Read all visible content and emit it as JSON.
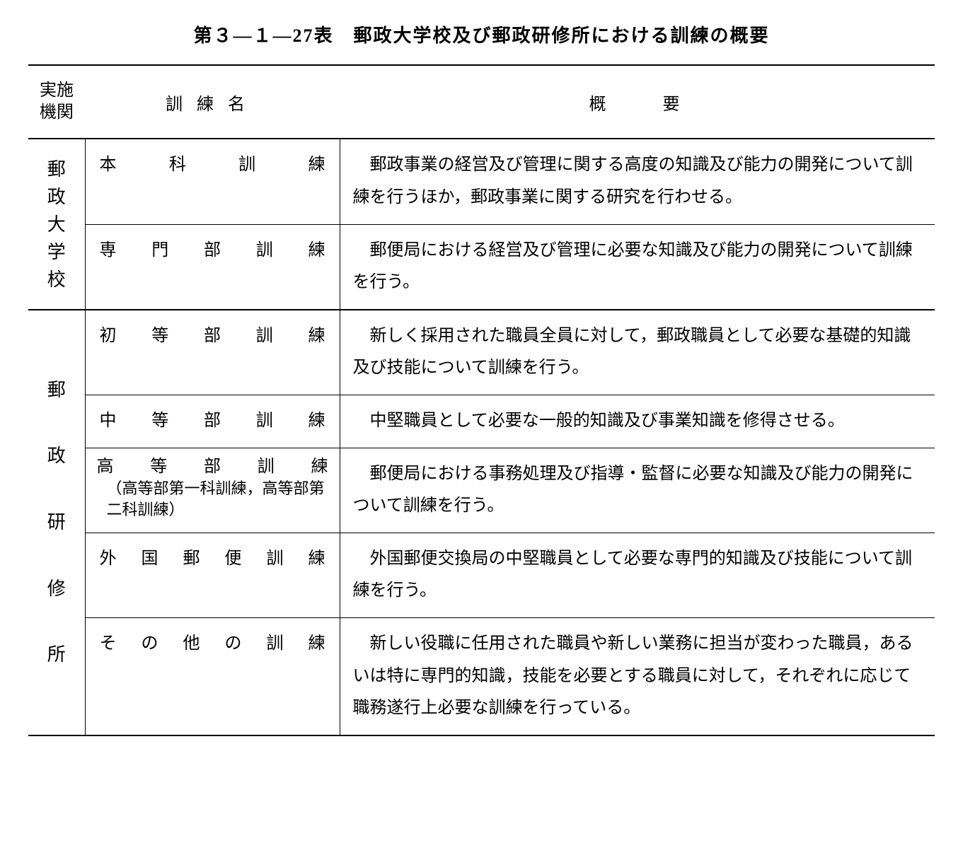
{
  "title": "第３―１―27表　郵政大学校及び郵政研修所における訓練の概要",
  "headers": {
    "institution": "実施\n機関",
    "name": "訓練名",
    "summary": "概要"
  },
  "sections": [
    {
      "institution": "郵政大学校",
      "inst_style": "tight",
      "rows": [
        {
          "name": "本科訓練",
          "summary": "郵政事業の経営及び管理に関する高度の知識及び能力の開発について訓練を行うほか，郵政事業に関する研究を行わせる。"
        },
        {
          "name": "専門部訓練",
          "summary": "郵便局における経営及び管理に必要な知識及び能力の開発について訓練を行う。"
        }
      ]
    },
    {
      "institution": "郵政研修所",
      "inst_style": "wide",
      "rows": [
        {
          "name": "初等部訓練",
          "summary": "新しく採用された職員全員に対して，郵政職員として必要な基礎的知識及び技能について訓練を行う。"
        },
        {
          "name": "中等部訓練",
          "summary": "中堅職員として必要な一般的知識及び事業知識を修得させる。"
        },
        {
          "name": "高等部訓練",
          "sub": "（高等部第一科訓練，高等部第二科訓練）",
          "summary": "郵便局における事務処理及び指導・監督に必要な知識及び能力の開発について訓練を行う。"
        },
        {
          "name": "外国郵便訓練",
          "summary": "外国郵便交換局の中堅職員として必要な専門的知識及び技能について訓練を行う。"
        },
        {
          "name": "その他の訓練",
          "summary": "新しい役職に任用された職員や新しい業務に担当が変わった職員，あるいは特に専門的知識，技能を必要とする職員に対して，それぞれに応じて職務遂行上必要な訓練を行っている。"
        }
      ]
    }
  ],
  "colors": {
    "background": "#ffffff",
    "text": "#000000",
    "border": "#000000"
  },
  "typography": {
    "title_fontsize": 26,
    "body_fontsize": 24,
    "sub_fontsize": 22,
    "font_family": "MS Mincho"
  }
}
